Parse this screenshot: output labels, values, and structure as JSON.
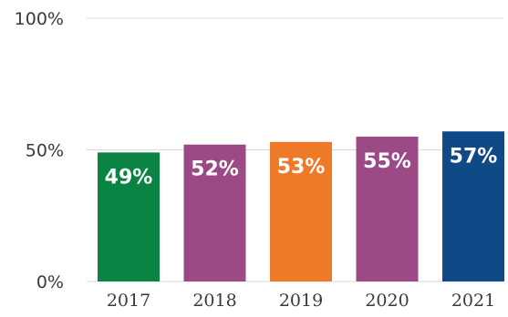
{
  "chart_data": {
    "type": "bar",
    "categories": [
      "2017",
      "2018",
      "2019",
      "2020",
      "2021"
    ],
    "values": [
      49,
      52,
      53,
      55,
      57
    ],
    "data_labels": [
      "49%",
      "52%",
      "53%",
      "55%",
      "57%"
    ],
    "bar_colors": [
      "#0a8442",
      "#9b4a85",
      "#ee7a27",
      "#9b4a85",
      "#0f4a86"
    ],
    "yticks": [
      "0%",
      "50%",
      "100%"
    ],
    "ytick_values": [
      0,
      50,
      100
    ],
    "ylim": [
      0,
      100
    ],
    "grid": true,
    "legend": "none",
    "title": "",
    "xlabel": "",
    "ylabel": ""
  }
}
